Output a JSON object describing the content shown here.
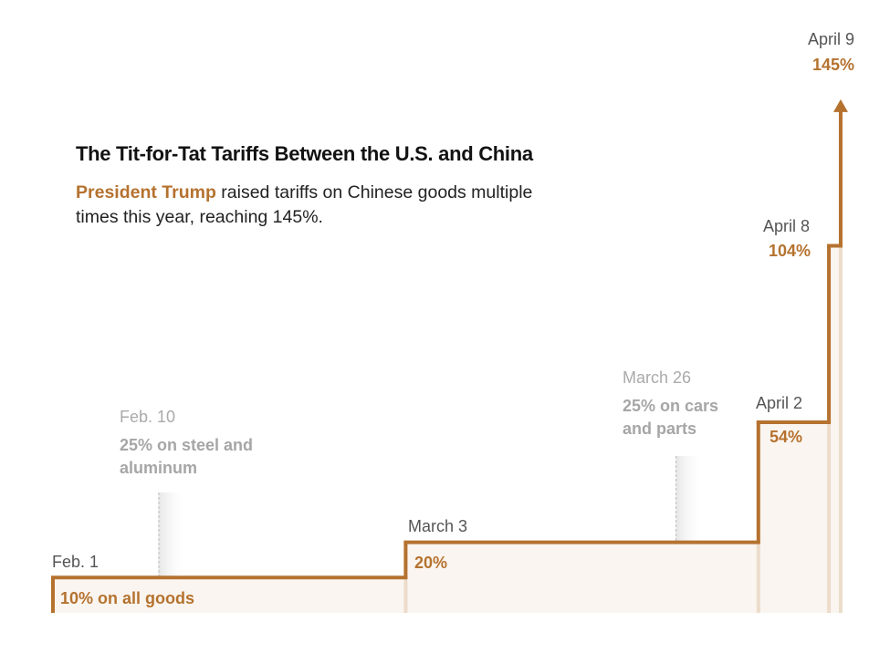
{
  "title": "The Tit-for-Tat Tariffs Between the U.S. and China",
  "subtitle": {
    "highlight": "President Trump",
    "rest": " raised tariffs on Chinese goods multiple times this year, reaching 145%."
  },
  "colors": {
    "line": "#b5722f",
    "fill": "#faf5f0",
    "annotation": "#a6a6a6"
  },
  "chart_data": {
    "type": "line",
    "style": "step",
    "grid": false,
    "ylabel": "",
    "xlabel": "",
    "series": [
      {
        "points": [
          {
            "date": "2025-02-01",
            "label": "Feb. 1",
            "value": 10,
            "value_label": "10% on all goods"
          },
          {
            "date": "2025-03-03",
            "label": "March 3",
            "value": 20,
            "value_label": "20%"
          },
          {
            "date": "2025-04-02",
            "label": "April 2",
            "value": 54,
            "value_label": "54%"
          },
          {
            "date": "2025-04-08",
            "label": "April 8",
            "value": 104,
            "value_label": "104%"
          },
          {
            "date": "2025-04-09",
            "label": "April 9",
            "value": 145,
            "value_label": "145%"
          }
        ]
      }
    ],
    "annotations": [
      {
        "date": "2025-02-10",
        "label": "Feb. 10",
        "text": "25% on steel and aluminum"
      },
      {
        "date": "2025-03-26",
        "label": "March 26",
        "text": "25% on cars and parts"
      }
    ]
  }
}
